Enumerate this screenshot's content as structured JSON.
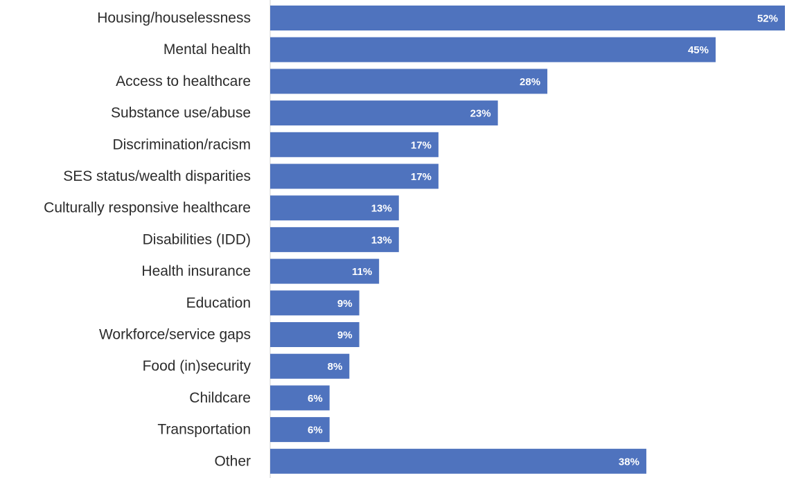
{
  "chart_data": {
    "type": "bar",
    "orientation": "horizontal",
    "title": "",
    "xlabel": "",
    "ylabel": "",
    "categories": [
      "Housing/houselessness",
      "Mental health",
      "Access to healthcare",
      "Substance use/abuse",
      "Discrimination/racism",
      "SES status/wealth disparities",
      "Culturally responsive healthcare",
      "Disabilities (IDD)",
      "Health insurance",
      "Education",
      "Workforce/service gaps",
      "Food (in)security",
      "Childcare",
      "Transportation",
      "Other"
    ],
    "values": [
      52,
      45,
      28,
      23,
      17,
      17,
      13,
      13,
      11,
      9,
      9,
      8,
      6,
      6,
      38
    ],
    "value_labels": [
      "52%",
      "45%",
      "28%",
      "23%",
      "17%",
      "17%",
      "13%",
      "13%",
      "11%",
      "9%",
      "9%",
      "8%",
      "6%",
      "6%",
      "38%"
    ],
    "xlim": [
      0,
      52
    ],
    "grid": false,
    "legend": "none",
    "colors": {
      "bar": "#4F73BE",
      "axis": "#d0d0d0",
      "category_text": "#2b2b2b",
      "value_text": "#ffffff"
    }
  }
}
